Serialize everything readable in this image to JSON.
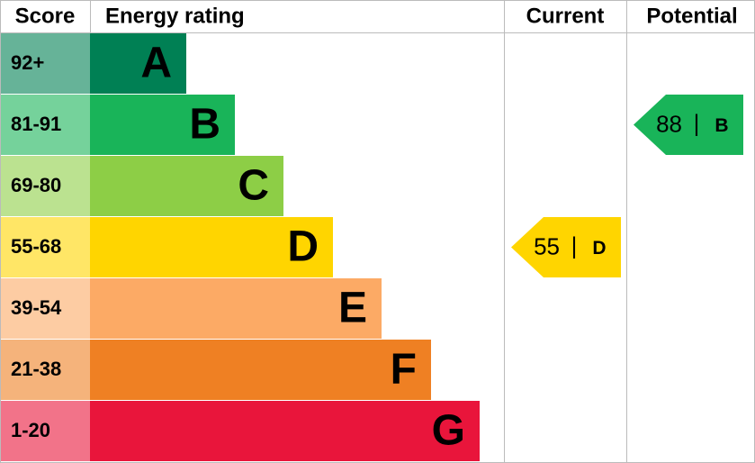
{
  "header": {
    "score": "Score",
    "rating": "Energy rating",
    "current": "Current",
    "potential": "Potential"
  },
  "bands": [
    {
      "range": "92+",
      "letter": "A",
      "color": "#008054"
    },
    {
      "range": "81-91",
      "letter": "B",
      "color": "#19b459"
    },
    {
      "range": "69-80",
      "letter": "C",
      "color": "#8dce46"
    },
    {
      "range": "55-68",
      "letter": "D",
      "color": "#ffd500"
    },
    {
      "range": "39-54",
      "letter": "E",
      "color": "#fcaa65"
    },
    {
      "range": "21-38",
      "letter": "F",
      "color": "#ef8023"
    },
    {
      "range": "1-20",
      "letter": "G",
      "color": "#e9153b"
    }
  ],
  "current": {
    "score": 55,
    "band": "D"
  },
  "potential": {
    "score": 88,
    "band": "B"
  },
  "separator": "|"
}
